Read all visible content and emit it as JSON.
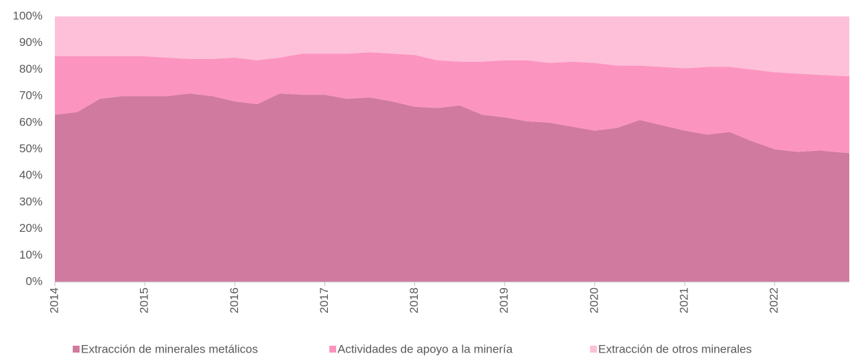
{
  "chart_data": {
    "type": "stacked_area",
    "x": [
      2014.0,
      2014.25,
      2014.5,
      2014.75,
      2015.0,
      2015.25,
      2015.5,
      2015.75,
      2016.0,
      2016.25,
      2016.5,
      2016.75,
      2017.0,
      2017.25,
      2017.5,
      2017.75,
      2018.0,
      2018.25,
      2018.5,
      2018.75,
      2019.0,
      2019.25,
      2019.5,
      2019.75,
      2020.0,
      2020.25,
      2020.5,
      2020.75,
      2021.0,
      2021.25,
      2021.5,
      2021.75,
      2022.0,
      2022.25,
      2022.5,
      2022.83
    ],
    "series": [
      {
        "name": "Extracción de minerales metálicos",
        "color": "#d17a9f",
        "values": [
          63,
          64,
          69,
          70,
          70,
          70,
          71,
          70,
          68,
          67,
          71,
          70.5,
          70.5,
          69,
          69.5,
          68,
          66,
          65.5,
          66.5,
          63,
          62,
          60.5,
          60,
          58.5,
          57,
          58,
          61,
          59,
          57,
          55.5,
          56.5,
          53,
          50,
          49,
          49.5,
          48.5
        ]
      },
      {
        "name": "Actividades de apoyo a la minería",
        "color": "#fc94c0",
        "values": [
          22,
          21,
          16,
          15,
          15,
          14.5,
          13,
          14,
          16.5,
          16.5,
          13.5,
          15.5,
          15.5,
          17,
          17,
          18,
          19.5,
          18,
          16.5,
          20,
          21.5,
          23,
          22.5,
          24.5,
          25.5,
          23.5,
          20.5,
          22,
          23.5,
          25.5,
          24.5,
          27,
          29,
          29.5,
          28.5,
          29
        ]
      },
      {
        "name": "Extracción de otros minerales",
        "color": "#fdc0d8",
        "values": [
          15,
          15,
          15,
          15,
          15,
          15.5,
          16,
          16,
          15.5,
          16.5,
          15.5,
          14,
          14,
          14,
          13.5,
          14,
          14.5,
          16.5,
          17,
          17,
          16.5,
          16.5,
          17.5,
          17,
          17.5,
          18.5,
          18.5,
          19,
          19.5,
          19,
          19,
          20,
          21,
          21.5,
          22,
          22.5
        ]
      }
    ],
    "xlim": [
      2014,
      2022.83
    ],
    "xticks": [
      2014,
      2015,
      2016,
      2017,
      2018,
      2019,
      2020,
      2021,
      2022
    ],
    "ylim": [
      0,
      100
    ],
    "yticks": [
      {
        "value": 0,
        "label": "0%"
      },
      {
        "value": 10,
        "label": "10%"
      },
      {
        "value": 20,
        "label": "20%"
      },
      {
        "value": 30,
        "label": "30%"
      },
      {
        "value": 40,
        "label": "40%"
      },
      {
        "value": 50,
        "label": "50%"
      },
      {
        "value": 60,
        "label": "60%"
      },
      {
        "value": 70,
        "label": "70%"
      },
      {
        "value": 80,
        "label": "80%"
      },
      {
        "value": 90,
        "label": "90%"
      },
      {
        "value": 100,
        "label": "100%"
      }
    ],
    "legend": "bottom"
  }
}
